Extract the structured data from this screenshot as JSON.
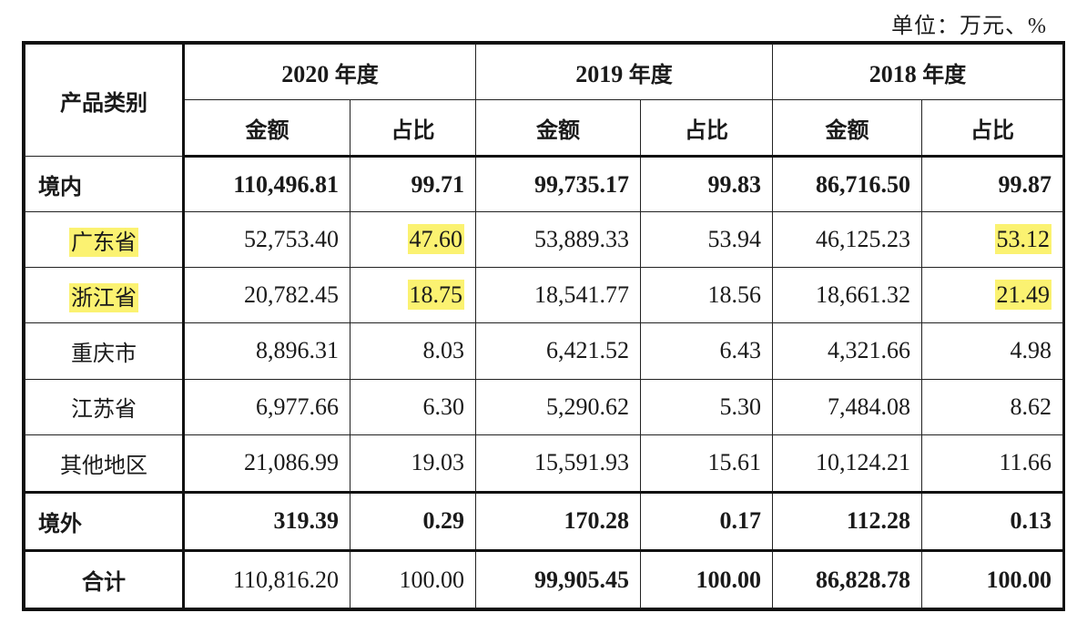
{
  "unit_label": "单位：万元、%",
  "header": {
    "category": "产品类别",
    "years": [
      {
        "year": "2020",
        "suffix": "年度"
      },
      {
        "year": "2019",
        "suffix": "年度"
      },
      {
        "year": "2018",
        "suffix": "年度"
      }
    ],
    "amount": "金额",
    "ratio": "占比"
  },
  "rows": [
    {
      "label": "境内",
      "v": [
        "110,496.81",
        "99.71",
        "99,735.17",
        "99.83",
        "86,716.50",
        "99.87"
      ]
    },
    {
      "label": "广东省",
      "v": [
        "52,753.40",
        "47.60",
        "53,889.33",
        "53.94",
        "46,125.23",
        "53.12"
      ]
    },
    {
      "label": "浙江省",
      "v": [
        "20,782.45",
        "18.75",
        "18,541.77",
        "18.56",
        "18,661.32",
        "21.49"
      ]
    },
    {
      "label": "重庆市",
      "v": [
        "8,896.31",
        "8.03",
        "6,421.52",
        "6.43",
        "4,321.66",
        "4.98"
      ]
    },
    {
      "label": "江苏省",
      "v": [
        "6,977.66",
        "6.30",
        "5,290.62",
        "5.30",
        "7,484.08",
        "8.62"
      ]
    },
    {
      "label": "其他地区",
      "v": [
        "21,086.99",
        "19.03",
        "15,591.93",
        "15.61",
        "10,124.21",
        "11.66"
      ]
    },
    {
      "label": "境外",
      "v": [
        "319.39",
        "0.29",
        "170.28",
        "0.17",
        "112.28",
        "0.13"
      ]
    },
    {
      "label": "合计",
      "v": [
        "110,816.20",
        "100.00",
        "99,905.45",
        "100.00",
        "86,828.78",
        "100.00"
      ]
    }
  ],
  "highlight_color": "#fbf271"
}
